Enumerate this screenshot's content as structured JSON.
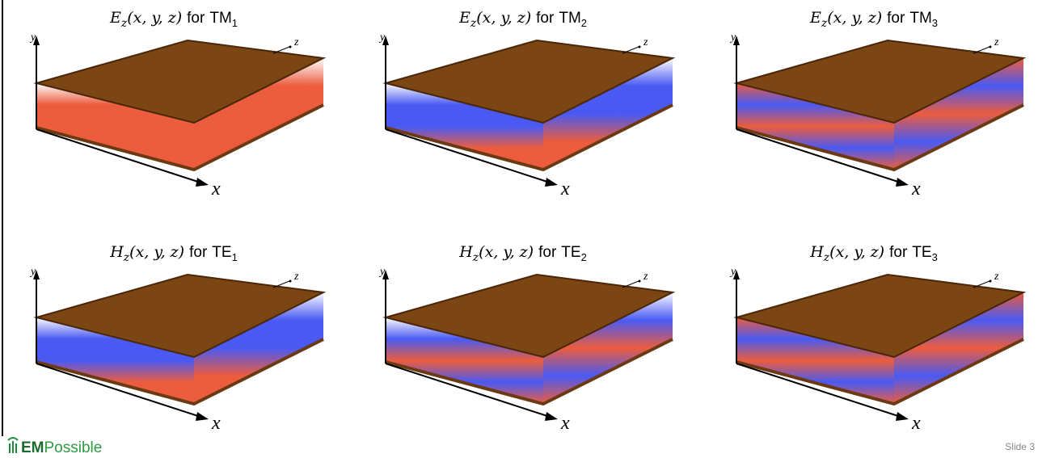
{
  "panels": [
    {
      "field": "E",
      "field_sub": "z",
      "args": "(x, y, z)",
      "connector": "for",
      "mode": "TM",
      "mode_sub": "1",
      "axes": {
        "y": "y",
        "z": "z",
        "x": "x"
      }
    },
    {
      "field": "E",
      "field_sub": "z",
      "args": "(x, y, z)",
      "connector": "for",
      "mode": "TM",
      "mode_sub": "2",
      "axes": {
        "y": "y",
        "z": "z",
        "x": "x"
      }
    },
    {
      "field": "E",
      "field_sub": "z",
      "args": "(x, y, z)",
      "connector": "for",
      "mode": "TM",
      "mode_sub": "3",
      "axes": {
        "y": "y",
        "z": "z",
        "x": "x"
      }
    },
    {
      "field": "H",
      "field_sub": "z",
      "args": "(x, y, z)",
      "connector": "for",
      "mode": "TE",
      "mode_sub": "1",
      "axes": {
        "y": "y",
        "z": "z",
        "x": "x"
      }
    },
    {
      "field": "H",
      "field_sub": "z",
      "args": "(x, y, z)",
      "connector": "for",
      "mode": "TE",
      "mode_sub": "2",
      "axes": {
        "y": "y",
        "z": "z",
        "x": "x"
      }
    },
    {
      "field": "H",
      "field_sub": "z",
      "args": "(x, y, z)",
      "connector": "for",
      "mode": "TE",
      "mode_sub": "3",
      "axes": {
        "y": "y",
        "z": "z",
        "x": "x"
      }
    }
  ],
  "footer": {
    "logo_bold": "EM",
    "logo_rest": "Possible",
    "slide": "Slide 3"
  }
}
